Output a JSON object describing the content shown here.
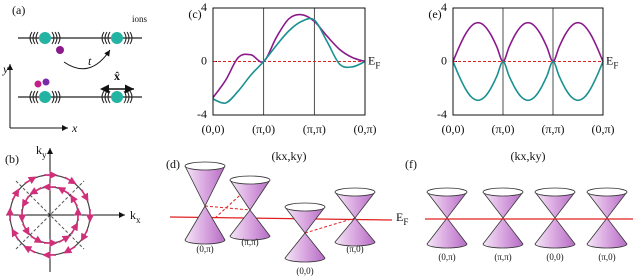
{
  "panel_a": {
    "label": "(a)",
    "ions": "ions",
    "hopping": "t",
    "direction": "x̂",
    "axis_x": "x",
    "axis_y": "y"
  },
  "panel_b": {
    "label": "(b)",
    "kx": {
      "main": "k",
      "sub": "x"
    },
    "ky": {
      "main": "k",
      "sub": "y"
    }
  },
  "chart_data": [
    {
      "type": "line",
      "title": "(c)",
      "x_label": "(kx,ky)",
      "x": [
        0,
        0.25,
        0.5,
        0.75,
        1,
        1.25,
        1.5,
        1.75,
        2,
        2.25,
        2.5,
        2.75,
        3
      ],
      "xlim": [
        0,
        3
      ],
      "xticks": [
        {
          "value": 0,
          "label": "(0,0)"
        },
        {
          "value": 1,
          "label": "(π,0)"
        },
        {
          "value": 2,
          "label": "(π,π)"
        },
        {
          "value": 3,
          "label": "(0,π)"
        }
      ],
      "ylim": [
        -4,
        4
      ],
      "yticks": [
        -4,
        0,
        4
      ],
      "xgrid": true,
      "series": [
        {
          "color": "#8b1a8b",
          "values": [
            -2.7,
            -1.4,
            0.3,
            0.5,
            0,
            1.8,
            3.2,
            3.5,
            3.0,
            1.9,
            0.9,
            0.3,
            0
          ]
        },
        {
          "color": "#1a9090",
          "values": [
            -2.8,
            -3.1,
            -2.2,
            -1.0,
            0,
            1.2,
            2.3,
            3.0,
            3.1,
            1.5,
            -0.2,
            -0.4,
            0
          ]
        }
      ],
      "reference_line": {
        "value": 0,
        "color": "#e02020",
        "label": {
          "main": "E",
          "sub": "F"
        }
      }
    },
    {
      "type": "line",
      "title": "(e)",
      "x_label": "(kx,ky)",
      "x": [
        0,
        0.125,
        0.25,
        0.375,
        0.5,
        0.625,
        0.75,
        0.875,
        1,
        1.125,
        1.25,
        1.375,
        1.5,
        1.625,
        1.75,
        1.875,
        2,
        2.125,
        2.25,
        2.375,
        2.5,
        2.625,
        2.75,
        2.875,
        3
      ],
      "xlim": [
        0,
        3
      ],
      "xticks": [
        {
          "value": 0,
          "label": "(0,0)"
        },
        {
          "value": 1,
          "label": "(π,0)"
        },
        {
          "value": 2,
          "label": "(π,π)"
        },
        {
          "value": 3,
          "label": "(0,π)"
        }
      ],
      "ylim": [
        -4,
        4
      ],
      "yticks": [
        -4,
        0,
        4
      ],
      "xgrid": true,
      "series": [
        {
          "color": "#8b1a8b",
          "values": [
            0,
            1.11,
            2.05,
            2.68,
            2.9,
            2.68,
            2.05,
            1.11,
            0,
            1.11,
            2.05,
            2.68,
            2.9,
            2.68,
            2.05,
            1.11,
            0,
            1.11,
            2.05,
            2.68,
            2.9,
            2.68,
            2.05,
            1.11,
            0
          ]
        },
        {
          "color": "#1a9090",
          "values": [
            0,
            -1.11,
            -2.05,
            -2.68,
            -2.9,
            -2.68,
            -2.05,
            -1.11,
            0,
            -1.11,
            -2.05,
            -2.68,
            -2.9,
            -2.68,
            -2.05,
            -1.11,
            0,
            -1.11,
            -2.05,
            -2.68,
            -2.9,
            -2.68,
            -2.05,
            -1.11,
            0
          ]
        }
      ],
      "reference_line": {
        "value": 0,
        "color": "#e02020",
        "label": {
          "main": "E",
          "sub": "F"
        }
      }
    }
  ],
  "panel_d": {
    "label": "(d)",
    "points": [
      "(0,π)",
      "(π,π)",
      "(0,0)",
      "(π,0)"
    ],
    "fermi": {
      "main": "E",
      "sub": "F"
    }
  },
  "panel_f": {
    "label": "(f)",
    "points": [
      "(0,π)",
      "(π,π)",
      "(0,0)",
      "(π,0)"
    ]
  }
}
